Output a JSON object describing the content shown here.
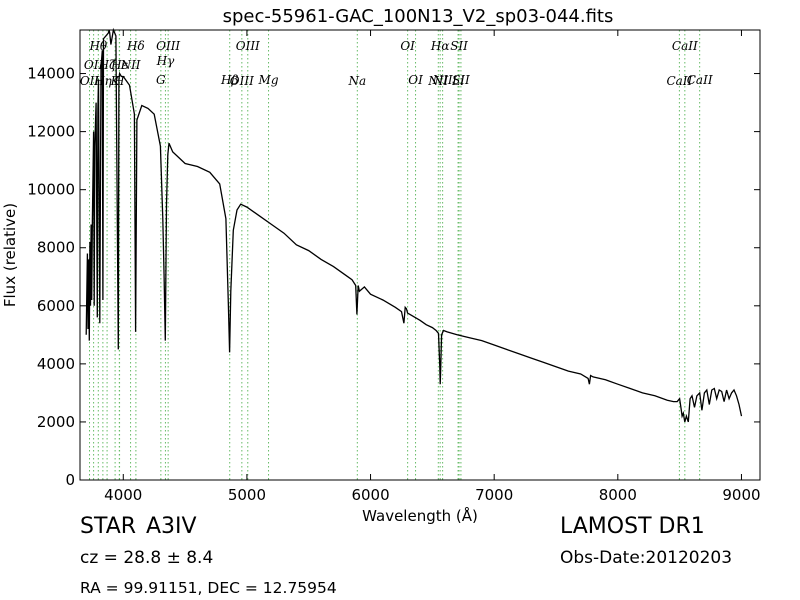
{
  "chart_data": {
    "type": "line",
    "title": "spec-55961-GAC_100N13_V2_sp03-044.fits",
    "xlabel": "Wavelength (Å)",
    "ylabel": "Flux (relative)",
    "xlim": [
      3650,
      9150
    ],
    "ylim": [
      0,
      15500
    ],
    "xticks": [
      4000,
      5000,
      6000,
      7000,
      8000,
      9000
    ],
    "yticks": [
      0,
      2000,
      4000,
      6000,
      8000,
      10000,
      12000,
      14000
    ],
    "grid": false,
    "series": [
      {
        "color": "#000000",
        "x": [
          3700,
          3710,
          3715,
          3720,
          3725,
          3730,
          3735,
          3740,
          3745,
          3750,
          3760,
          3765,
          3770,
          3780,
          3790,
          3795,
          3800,
          3810,
          3820,
          3830,
          3835,
          3840,
          3860,
          3880,
          3885,
          3890,
          3900,
          3920,
          3940,
          3960,
          3965,
          3970,
          3985,
          4000,
          4050,
          4090,
          4100,
          4110,
          4150,
          4200,
          4250,
          4300,
          4320,
          4330,
          4340,
          4350,
          4360,
          4370,
          4400,
          4500,
          4600,
          4700,
          4780,
          4830,
          4850,
          4860,
          4870,
          4890,
          4920,
          4950,
          5000,
          5100,
          5200,
          5300,
          5400,
          5500,
          5600,
          5700,
          5800,
          5850,
          5880,
          5890,
          5900,
          5910,
          5950,
          6000,
          6100,
          6200,
          6250,
          6270,
          6280,
          6290,
          6300,
          6400,
          6450,
          6500,
          6530,
          6550,
          6560,
          6563,
          6566,
          6575,
          6590,
          6620,
          6700,
          6800,
          6900,
          7000,
          7100,
          7200,
          7300,
          7400,
          7500,
          7600,
          7700,
          7760,
          7770,
          7780,
          7800,
          7900,
          8000,
          8100,
          8200,
          8300,
          8400,
          8450,
          8480,
          8500,
          8510,
          8520,
          8530,
          8542,
          8555,
          8570,
          8585,
          8600,
          8620,
          8640,
          8662,
          8680,
          8700,
          8720,
          8740,
          8760,
          8780,
          8800,
          8820,
          8840,
          8860,
          8880,
          8900,
          8920,
          8940,
          8960,
          8980,
          9000
        ],
        "y": [
          5000,
          7800,
          5200,
          7600,
          4800,
          8200,
          6000,
          8800,
          6200,
          9000,
          12000,
          6000,
          11500,
          13000,
          5600,
          12800,
          13800,
          5400,
          14200,
          14800,
          6200,
          15200,
          15300,
          15400,
          15500,
          15400,
          15000,
          15500,
          15300,
          4500,
          13800,
          14000,
          13900,
          13900,
          13600,
          12600,
          5100,
          12400,
          12900,
          12800,
          12600,
          11500,
          9000,
          7000,
          4800,
          9500,
          11200,
          11600,
          11300,
          10900,
          10800,
          10600,
          10200,
          9000,
          6000,
          4400,
          6500,
          8600,
          9300,
          9500,
          9400,
          9100,
          8800,
          8500,
          8100,
          7900,
          7600,
          7350,
          7050,
          6900,
          6700,
          5700,
          6700,
          6500,
          6650,
          6400,
          6200,
          5950,
          5800,
          5400,
          5950,
          5900,
          5750,
          5500,
          5350,
          5250,
          5150,
          5050,
          3900,
          3300,
          3600,
          5000,
          5150,
          5100,
          5000,
          4900,
          4800,
          4650,
          4500,
          4350,
          4200,
          4050,
          3900,
          3750,
          3650,
          3500,
          3300,
          3600,
          3550,
          3450,
          3300,
          3150,
          3000,
          2900,
          2750,
          2700,
          2700,
          2800,
          2500,
          2200,
          2300,
          2000,
          2200,
          2000,
          2800,
          2900,
          2500,
          2900,
          3000,
          2400,
          3000,
          3100,
          2600,
          3100,
          3150,
          2800,
          3100,
          3050,
          2700,
          3100,
          2800,
          3000,
          3100,
          2900,
          2600,
          2200
        ]
      }
    ],
    "line_labels": [
      {
        "wave": 3727,
        "text": "OII",
        "row": 2
      },
      {
        "wave": 3760,
        "text": "OII",
        "row": 1
      },
      {
        "wave": 3798,
        "text": "Hθ",
        "row": 0
      },
      {
        "wave": 3835,
        "text": "Hη",
        "row": 2
      },
      {
        "wave": 3869,
        "text": "Hζ",
        "row": 1
      },
      {
        "wave": 3934,
        "text": "K",
        "row": 2
      },
      {
        "wave": 3970,
        "text": "Hε",
        "row": 1
      },
      {
        "wave": 3968,
        "text": "H",
        "row": 2
      },
      {
        "wave": 4102,
        "text": "Hδ",
        "row": 0
      },
      {
        "wave": 4059,
        "text": "NII",
        "row": 1
      },
      {
        "wave": 4304,
        "text": "G",
        "row": 3
      },
      {
        "wave": 4341,
        "text": "Hγ",
        "row": 4
      },
      {
        "wave": 4363,
        "text": "OIII",
        "row": 0
      },
      {
        "wave": 4861,
        "text": "Hβ",
        "row": 3
      },
      {
        "wave": 4959,
        "text": "OIII",
        "row": 2
      },
      {
        "wave": 5007,
        "text": "OIII",
        "row": 0
      },
      {
        "wave": 5175,
        "text": "Mg",
        "row": 3
      },
      {
        "wave": 5893,
        "text": "Na",
        "row": 2
      },
      {
        "wave": 6300,
        "text": "OI",
        "row": 0
      },
      {
        "wave": 6364,
        "text": "OI",
        "row": 3
      },
      {
        "wave": 6548,
        "text": "NII",
        "row": 2
      },
      {
        "wave": 6563,
        "text": "Hα",
        "row": 0
      },
      {
        "wave": 6583,
        "text": "NII",
        "row": 3
      },
      {
        "wave": 6716,
        "text": "SII",
        "row": 0
      },
      {
        "wave": 6708,
        "text": "Li",
        "row": 2
      },
      {
        "wave": 6731,
        "text": "SII",
        "row": 3
      },
      {
        "wave": 8498,
        "text": "CaII",
        "row": 2
      },
      {
        "wave": 8542,
        "text": "CaII",
        "row": 0
      },
      {
        "wave": 8662,
        "text": "CaII",
        "row": 3
      }
    ]
  },
  "info": {
    "class_label": "STAR",
    "subclass": "A3IV",
    "survey": "LAMOST DR1",
    "cz": "cz = 28.8 ± 8.4",
    "obs_date": "Obs-Date:20120203",
    "coords": "RA = 99.91151, DEC = 12.75954"
  },
  "colors": {
    "spectrum": "#000000",
    "marker_lines": "#66bb66",
    "axes": "#000000"
  }
}
